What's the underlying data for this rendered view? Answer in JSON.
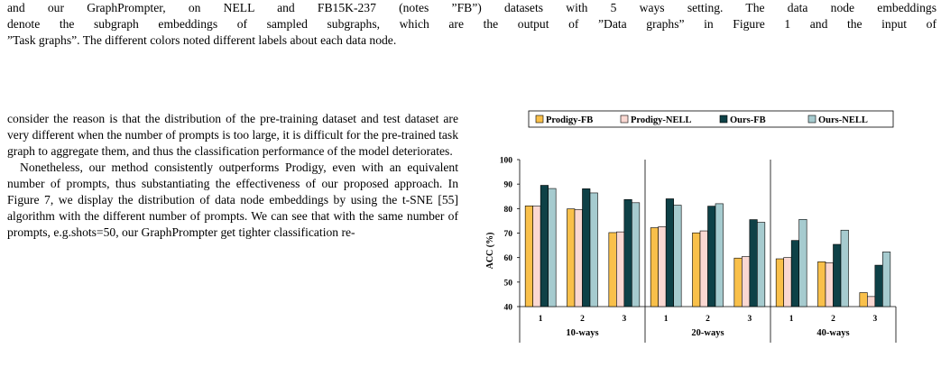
{
  "caption": {
    "line1": "and our GraphPrompter, on NELL and FB15K-237 (notes ”FB”) datasets with 5 ways setting. The data node embeddings",
    "line2": "denote the subgraph embeddings of sampled subgraphs, which are the output of ”Data graphs” in Figure 1 and the input of",
    "line3": "”Task graphs”. The different colors noted different labels about each data node."
  },
  "body": {
    "para1": "consider the reason is that the distribution of the pre-training dataset and test dataset are very different when the number of prompts is too large, it is difficult for the pre-trained task graph to aggregate them, and thus the classification performance of the model deteriorates.",
    "para2": "Nonetheless, our method consistently outperforms Prodigy, even with an equivalent number of prompts, thus substantiating the effectiveness of our proposed approach. In Figure 7, we display the distribution of data node embeddings by using the t-SNE [55] algorithm with the different number of prompts. We can see that with the same number of prompts, e.g.shots=50, our GraphPrompter get tighter classification re-"
  },
  "chart_data": {
    "type": "bar",
    "ylabel": "ACC (%)",
    "xlabel": "",
    "ylim": [
      40,
      100
    ],
    "yticks": [
      40,
      50,
      60,
      70,
      80,
      90,
      100
    ],
    "grid": false,
    "legend_position": "top",
    "groups": [
      "10-ways",
      "20-ways",
      "40-ways"
    ],
    "categories": [
      "1",
      "2",
      "3",
      "1",
      "2",
      "3",
      "1",
      "2",
      "3"
    ],
    "series": [
      {
        "name": "Prodigy-FB",
        "color": "#F9C04A",
        "values": [
          81.1,
          79.9,
          70.2,
          72.2,
          70.1,
          59.8,
          59.5,
          58.3,
          45.7
        ]
      },
      {
        "name": "Prodigy-NELL",
        "color": "#FAD8D2",
        "values": [
          81.0,
          79.6,
          70.5,
          72.6,
          70.9,
          60.4,
          60.0,
          57.9,
          44.1
        ]
      },
      {
        "name": "Ours-FB",
        "color": "#0E4147",
        "values": [
          89.5,
          88.1,
          83.7,
          84.0,
          81.0,
          75.5,
          67.0,
          65.4,
          56.9
        ]
      },
      {
        "name": "Ours-NELL",
        "color": "#A6CBCF",
        "values": [
          88.2,
          86.4,
          82.4,
          81.4,
          82.0,
          74.4,
          75.6,
          71.2,
          62.3
        ]
      }
    ]
  }
}
